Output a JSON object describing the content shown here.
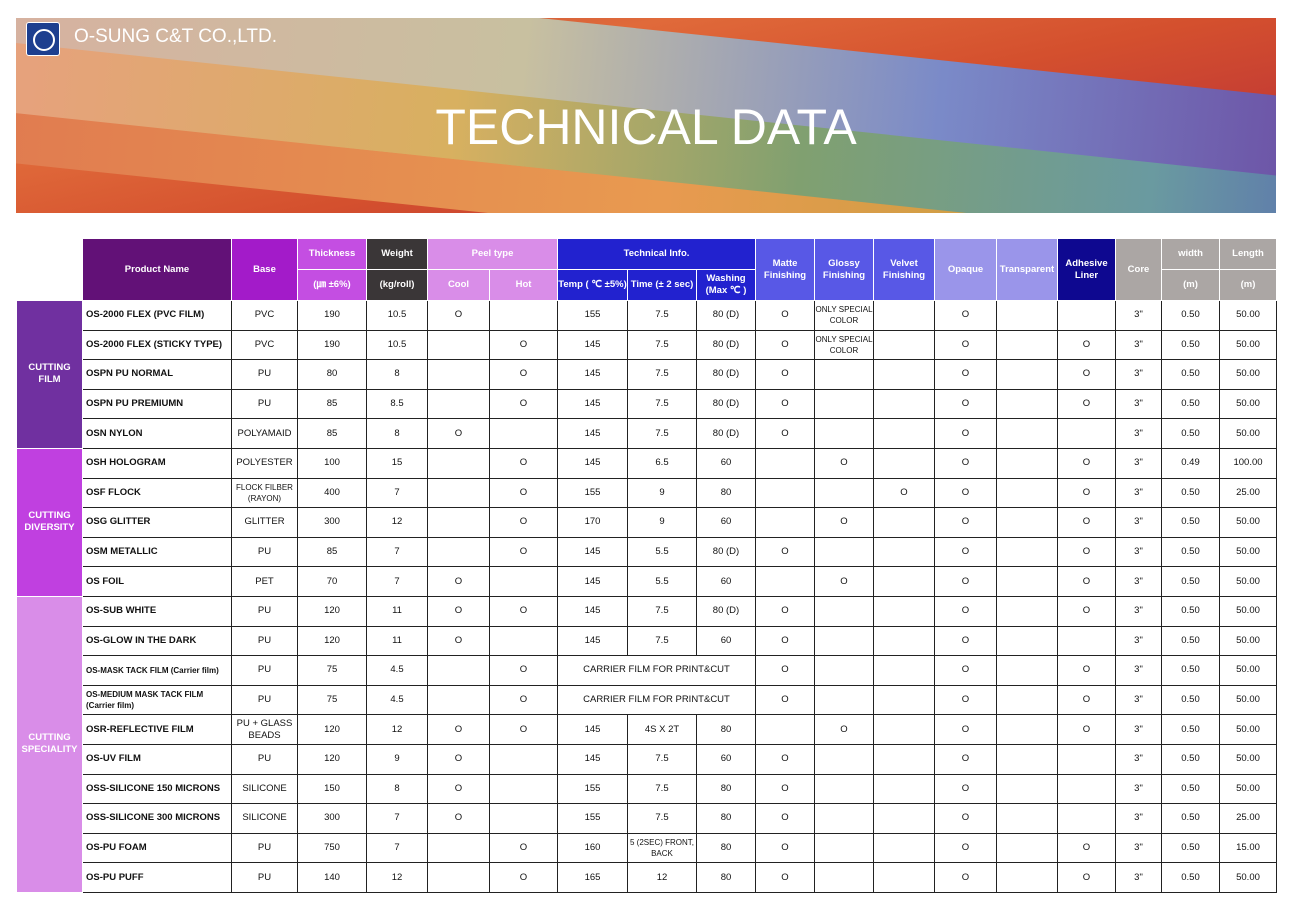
{
  "header": {
    "company": "O-SUNG C&T CO.,LTD.",
    "title": "TECHNICAL DATA"
  },
  "colors": {
    "product": "#621177",
    "base": "#a31bc9",
    "thickness": "#c44ee2",
    "weight": "#3a3637",
    "peel": "#d98de8",
    "tech": "#2222cf",
    "finish": "#5858e6",
    "opacity": "#9a95ea",
    "adhesive": "#0e0890",
    "dim": "#aba6a4"
  },
  "columns": {
    "product": "Product Name",
    "base": "Base",
    "thickness": "Thickness",
    "thickness_unit": "(㎛ ±6%)",
    "weight": "Weight",
    "weight_unit": "(kg/roll)",
    "peel": "Peel type",
    "cool": "Cool",
    "hot": "Hot",
    "tech": "Technical Info.",
    "temp": "Temp ( ℃ ±5%)",
    "time": "Time (± 2 sec)",
    "washing": "Washing (Max ℃ )",
    "matte": "Matte Finishing",
    "glossy": "Glossy Finishing",
    "velvet": "Velvet Finishing",
    "opaque": "Opaque",
    "transparent": "Transparent",
    "adhesive": "Adhesive Liner",
    "core": "Core",
    "width": "width",
    "width_unit": "(m)",
    "length": "Length",
    "length_unit": "(m)"
  },
  "groups": [
    {
      "label": "CUTTING FILM",
      "rows": 5,
      "color": "#7030a0"
    },
    {
      "label": "CUTTING DIVERSITY",
      "rows": 5,
      "color": "#c040e0"
    },
    {
      "label": "CUTTING SPECIALITY",
      "rows": 10,
      "color": "#d98de8"
    }
  ],
  "rows": [
    [
      "OS-2000 FLEX (PVC FILM)",
      "PVC",
      "190",
      "10.5",
      "O",
      "",
      "155",
      "7.5",
      "80 (D)",
      "O",
      "ONLY SPECIAL COLOR",
      "",
      "O",
      "",
      "",
      "3\"",
      "0.50",
      "50.00"
    ],
    [
      "OS-2000 FLEX (STICKY TYPE)",
      "PVC",
      "190",
      "10.5",
      "",
      "O",
      "145",
      "7.5",
      "80 (D)",
      "O",
      "ONLY SPECIAL COLOR",
      "",
      "O",
      "",
      "O",
      "3\"",
      "0.50",
      "50.00"
    ],
    [
      "OSPN PU NORMAL",
      "PU",
      "80",
      "8",
      "",
      "O",
      "145",
      "7.5",
      "80 (D)",
      "O",
      "",
      "",
      "O",
      "",
      "O",
      "3\"",
      "0.50",
      "50.00"
    ],
    [
      "OSPN PU PREMIUMN",
      "PU",
      "85",
      "8.5",
      "",
      "O",
      "145",
      "7.5",
      "80 (D)",
      "O",
      "",
      "",
      "O",
      "",
      "O",
      "3\"",
      "0.50",
      "50.00"
    ],
    [
      "OSN NYLON",
      "POLYAMAID",
      "85",
      "8",
      "O",
      "",
      "145",
      "7.5",
      "80 (D)",
      "O",
      "",
      "",
      "O",
      "",
      "",
      "3\"",
      "0.50",
      "50.00"
    ],
    [
      "OSH HOLOGRAM",
      "POLYESTER",
      "100",
      "15",
      "",
      "O",
      "145",
      "6.5",
      "60",
      "",
      "O",
      "",
      "O",
      "",
      "O",
      "3\"",
      "0.49",
      "100.00"
    ],
    [
      "OSF FLOCK",
      "FLOCK FILBER (RAYON)",
      "400",
      "7",
      "",
      "O",
      "155",
      "9",
      "80",
      "",
      "",
      "O",
      "O",
      "",
      "O",
      "3\"",
      "0.50",
      "25.00"
    ],
    [
      "OSG GLITTER",
      "GLITTER",
      "300",
      "12",
      "",
      "O",
      "170",
      "9",
      "60",
      "",
      "O",
      "",
      "O",
      "",
      "O",
      "3\"",
      "0.50",
      "50.00"
    ],
    [
      "OSM METALLIC",
      "PU",
      "85",
      "7",
      "",
      "O",
      "145",
      "5.5",
      "80 (D)",
      "O",
      "",
      "",
      "O",
      "",
      "O",
      "3\"",
      "0.50",
      "50.00"
    ],
    [
      "OS FOIL",
      "PET",
      "70",
      "7",
      "O",
      "",
      "145",
      "5.5",
      "60",
      "",
      "O",
      "",
      "O",
      "",
      "O",
      "3\"",
      "0.50",
      "50.00"
    ],
    [
      "OS-SUB WHITE",
      "PU",
      "120",
      "11",
      "O",
      "O",
      "145",
      "7.5",
      "80 (D)",
      "O",
      "",
      "",
      "O",
      "",
      "O",
      "3\"",
      "0.50",
      "50.00"
    ],
    [
      "OS-GLOW IN THE DARK",
      "PU",
      "120",
      "11",
      "O",
      "",
      "145",
      "7.5",
      "60",
      "O",
      "",
      "",
      "O",
      "",
      "",
      "3\"",
      "0.50",
      "50.00"
    ],
    [
      "OS-MASK TACK FILM (Carrier film)",
      "PU",
      "75",
      "4.5",
      "",
      "O",
      "CARRIER FILM FOR PRINT&CUT",
      null,
      null,
      "O",
      "",
      "",
      "O",
      "",
      "O",
      "3\"",
      "0.50",
      "50.00"
    ],
    [
      "OS-MEDIUM MASK TACK FILM (Carrier film)",
      "PU",
      "75",
      "4.5",
      "",
      "O",
      "CARRIER FILM FOR PRINT&CUT",
      null,
      null,
      "O",
      "",
      "",
      "O",
      "",
      "O",
      "3\"",
      "0.50",
      "50.00"
    ],
    [
      "OSR-REFLECTIVE FILM",
      "PU + GLASS BEADS",
      "120",
      "12",
      "O",
      "O",
      "145",
      "4S X 2T",
      "80",
      "",
      "O",
      "",
      "O",
      "",
      "O",
      "3\"",
      "0.50",
      "50.00"
    ],
    [
      "OS-UV FILM",
      "PU",
      "120",
      "9",
      "O",
      "",
      "145",
      "7.5",
      "60",
      "O",
      "",
      "",
      "O",
      "",
      "",
      "3\"",
      "0.50",
      "50.00"
    ],
    [
      "OSS-SILICONE 150 MICRONS",
      "SILICONE",
      "150",
      "8",
      "O",
      "",
      "155",
      "7.5",
      "80",
      "O",
      "",
      "",
      "O",
      "",
      "",
      "3\"",
      "0.50",
      "50.00"
    ],
    [
      "OSS-SILICONE 300 MICRONS",
      "SILICONE",
      "300",
      "7",
      "O",
      "",
      "155",
      "7.5",
      "80",
      "O",
      "",
      "",
      "O",
      "",
      "",
      "3\"",
      "0.50",
      "25.00"
    ],
    [
      "OS-PU FOAM",
      "PU",
      "750",
      "7",
      "",
      "O",
      "160",
      "5 (2SEC) FRONT, BACK",
      "80",
      "O",
      "",
      "",
      "O",
      "",
      "O",
      "3\"",
      "0.50",
      "15.00"
    ],
    [
      "OS-PU PUFF",
      "PU",
      "140",
      "12",
      "",
      "O",
      "165",
      "12",
      "80",
      "O",
      "",
      "",
      "O",
      "",
      "O",
      "3\"",
      "0.50",
      "50.00"
    ]
  ]
}
